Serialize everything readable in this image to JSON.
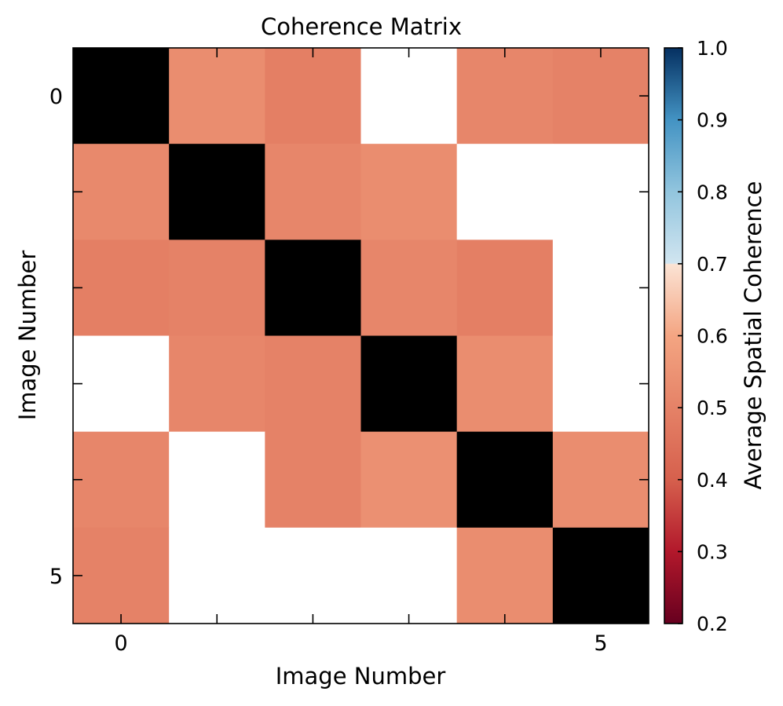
{
  "chart_data": {
    "type": "heatmap",
    "title": "Coherence Matrix",
    "xlabel": "Image Number",
    "ylabel": "Image Number",
    "rows": [
      0,
      1,
      2,
      3,
      4,
      5
    ],
    "columns": [
      0,
      1,
      2,
      3,
      4,
      5
    ],
    "x_tick_labels": [
      "0",
      "5"
    ],
    "y_tick_labels": [
      "0",
      "5"
    ],
    "values": [
      [
        null,
        0.63,
        0.59,
        0.7,
        0.61,
        0.6
      ],
      [
        0.62,
        null,
        0.61,
        0.63,
        0.7,
        0.7
      ],
      [
        0.59,
        0.6,
        null,
        0.61,
        0.59,
        0.7
      ],
      [
        0.7,
        0.61,
        0.6,
        null,
        0.63,
        0.7
      ],
      [
        0.61,
        0.7,
        0.6,
        0.64,
        null,
        0.63
      ],
      [
        0.6,
        0.7,
        0.7,
        0.7,
        0.63,
        null
      ]
    ],
    "diagonal_color": "#000000",
    "colorbar": {
      "label": "Average Spatial Coherence",
      "range": [
        0.2,
        1.0
      ],
      "tick_labels": [
        "0.2",
        "0.3",
        "0.4",
        "0.5",
        "0.6",
        "0.7",
        "0.8",
        "0.9",
        "1.0"
      ],
      "colormap": "RdBu",
      "grid": false
    }
  }
}
